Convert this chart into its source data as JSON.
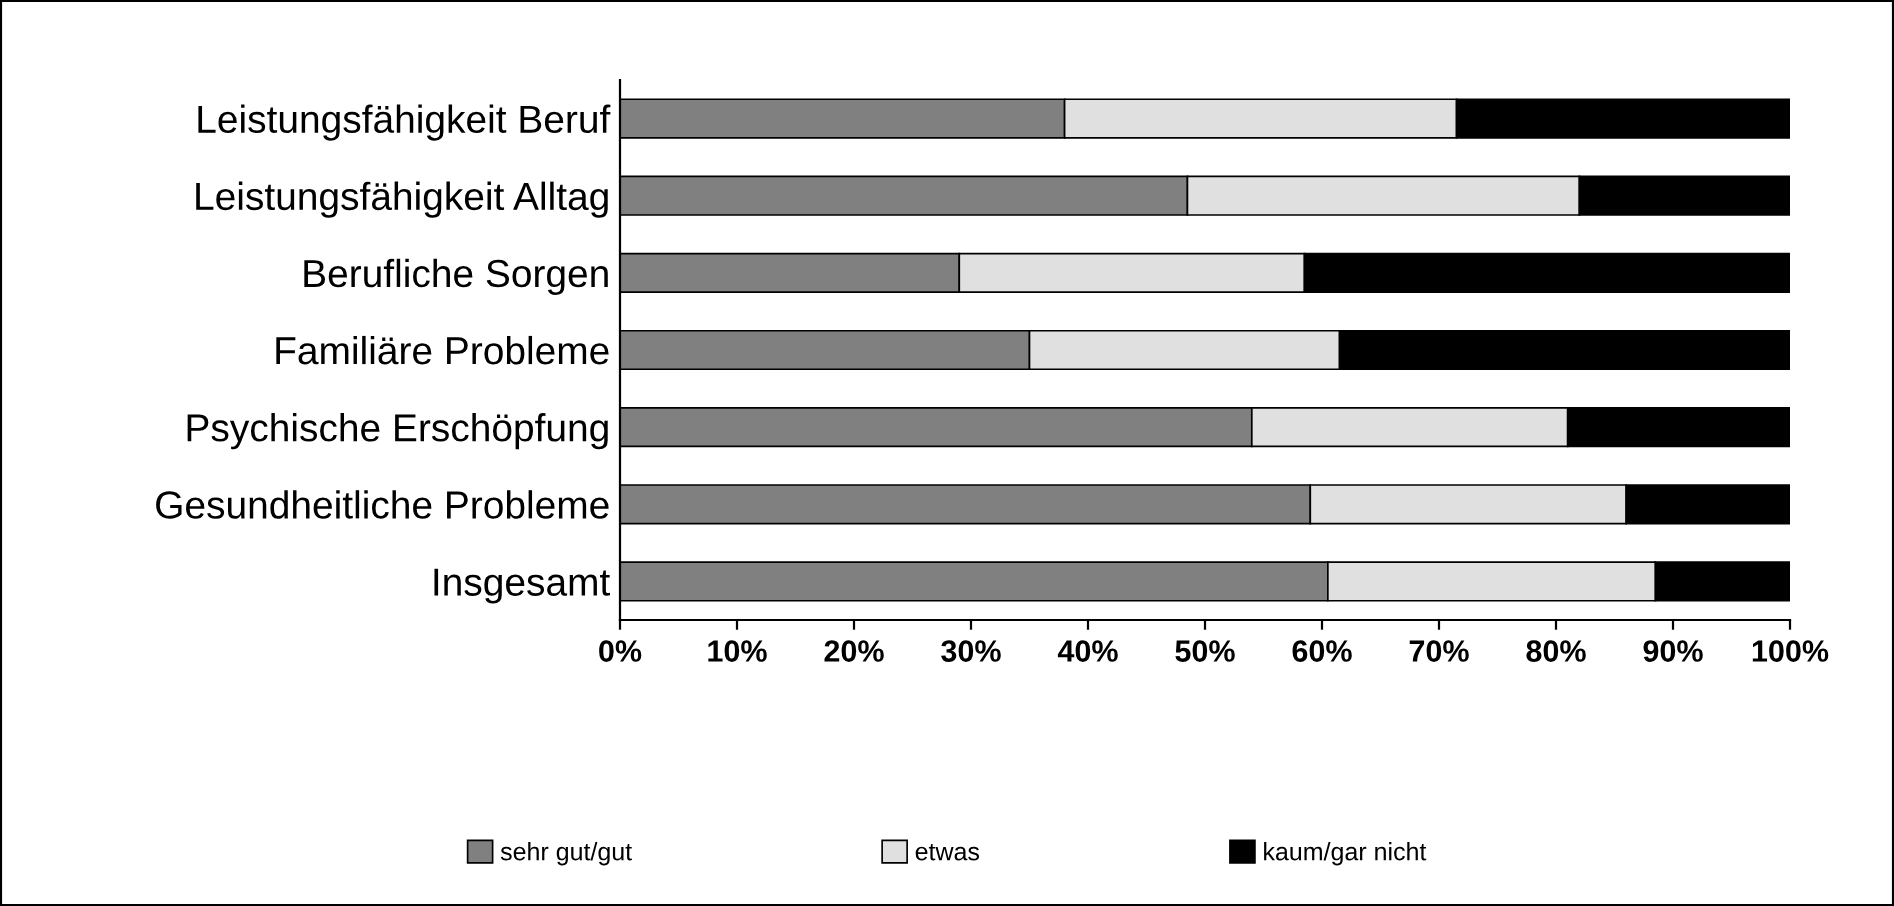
{
  "chart_data": {
    "type": "bar",
    "orientation": "horizontal",
    "stacked": true,
    "categories": [
      "Leistungsfähigkeit Beruf",
      "Leistungsfähigkeit Alltag",
      "Berufliche Sorgen",
      "Familiäre Probleme",
      "Psychische Erschöpfung",
      "Gesundheitliche Probleme",
      "Insgesamt"
    ],
    "series": [
      {
        "name": "sehr gut/gut",
        "color": "#808080",
        "values": [
          38,
          48.5,
          29,
          35,
          54,
          59,
          60.5
        ]
      },
      {
        "name": "etwas",
        "color": "#e0e0e0",
        "values": [
          33.5,
          33.5,
          29.5,
          26.5,
          27,
          27,
          28
        ]
      },
      {
        "name": "kaum/gar nicht",
        "color": "#000000",
        "values": [
          28.5,
          18,
          41.5,
          38.5,
          19,
          14,
          11.5
        ]
      }
    ],
    "xlim": [
      0,
      100
    ],
    "xticks": [
      {
        "value": 0,
        "label": "0%"
      },
      {
        "value": 10,
        "label": "10%"
      },
      {
        "value": 20,
        "label": "20%"
      },
      {
        "value": 30,
        "label": "30%"
      },
      {
        "value": 40,
        "label": "40%"
      },
      {
        "value": 50,
        "label": "50%"
      },
      {
        "value": 60,
        "label": "60%"
      },
      {
        "value": 70,
        "label": "70%"
      },
      {
        "value": 80,
        "label": "80%"
      },
      {
        "value": 90,
        "label": "90%"
      },
      {
        "value": 100,
        "label": "100%"
      }
    ],
    "grid": false,
    "legend": "bottom"
  }
}
